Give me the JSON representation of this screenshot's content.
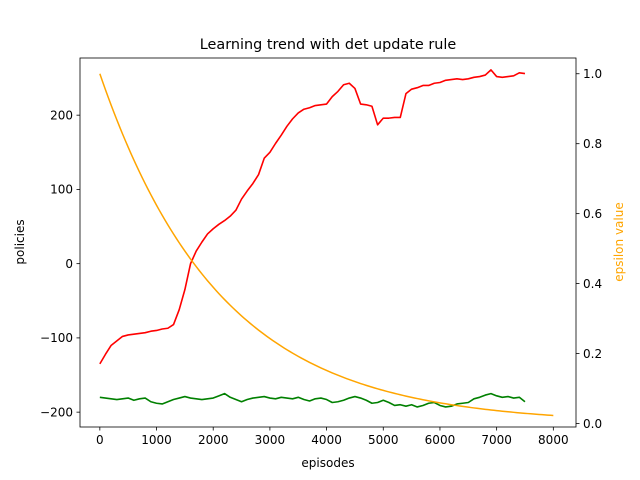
{
  "chart_data": {
    "type": "line",
    "title": "Learning trend with det update rule",
    "xlabel": "episodes",
    "ylabel": "policies",
    "y2label": "epsilon value",
    "xlim": [
      -350,
      8400
    ],
    "ylim": [
      -220,
      277
    ],
    "y2lim": [
      -0.01,
      1.045
    ],
    "x_ticks": [
      0,
      1000,
      2000,
      3000,
      4000,
      5000,
      6000,
      7000,
      8000
    ],
    "y_ticks": [
      -200,
      -100,
      0,
      100,
      200
    ],
    "y2_ticks": [
      0.0,
      0.2,
      0.4,
      0.6,
      0.8,
      1.0
    ],
    "grid": false,
    "colors": {
      "red_series": "#ff0000",
      "green_series": "#008000",
      "epsilon": "#ffa500",
      "y2label": "#ffa500"
    },
    "series": [
      {
        "axis": "left",
        "color": "#ff0000",
        "x": [
          0,
          100,
          200,
          300,
          400,
          500,
          600,
          700,
          800,
          900,
          1000,
          1100,
          1200,
          1300,
          1400,
          1500,
          1600,
          1700,
          1800,
          1900,
          2000,
          2100,
          2200,
          2300,
          2400,
          2500,
          2600,
          2700,
          2800,
          2900,
          3000,
          3100,
          3200,
          3300,
          3400,
          3500,
          3600,
          3700,
          3800,
          3900,
          4000,
          4100,
          4200,
          4300,
          4400,
          4500,
          4600,
          4700,
          4800,
          4900,
          5000,
          5100,
          5200,
          5300,
          5400,
          5500,
          5600,
          5700,
          5800,
          5900,
          6000,
          6100,
          6200,
          6300,
          6400,
          6500,
          6600,
          6700,
          6800,
          6900,
          7000,
          7100,
          7200,
          7300,
          7400,
          7500
        ],
        "y": [
          -135,
          -122,
          -110,
          -104,
          -98,
          -96,
          -95,
          -94,
          -93,
          -91,
          -90,
          -88,
          -87,
          -82,
          -62,
          -35,
          0,
          17,
          29,
          40,
          47,
          53,
          58,
          64,
          72,
          87,
          98,
          108,
          120,
          142,
          150,
          162,
          173,
          185,
          195,
          203,
          208,
          210,
          213,
          214,
          215,
          225,
          232,
          241,
          243,
          236,
          215,
          214,
          212,
          187,
          196,
          196,
          197,
          197,
          229,
          235,
          237,
          240,
          240,
          243,
          244,
          247,
          248,
          249,
          248,
          249,
          251,
          252,
          254,
          261,
          252,
          251,
          252,
          253,
          257,
          256
        ]
      },
      {
        "axis": "left",
        "color": "#008000",
        "x": [
          0,
          100,
          200,
          300,
          400,
          500,
          600,
          700,
          800,
          900,
          1000,
          1100,
          1200,
          1300,
          1400,
          1500,
          1600,
          1700,
          1800,
          1900,
          2000,
          2100,
          2200,
          2300,
          2400,
          2500,
          2600,
          2700,
          2800,
          2900,
          3000,
          3100,
          3200,
          3300,
          3400,
          3500,
          3600,
          3700,
          3800,
          3900,
          4000,
          4100,
          4200,
          4300,
          4400,
          4500,
          4600,
          4700,
          4800,
          4900,
          5000,
          5100,
          5200,
          5300,
          5400,
          5500,
          5600,
          5700,
          5800,
          5900,
          6000,
          6100,
          6200,
          6300,
          6400,
          6500,
          6600,
          6700,
          6800,
          6900,
          7000,
          7100,
          7200,
          7300,
          7400,
          7500
        ],
        "y": [
          -180,
          -181,
          -182,
          -183,
          -182,
          -181,
          -184,
          -182,
          -181,
          -186,
          -188,
          -189,
          -186,
          -183,
          -181,
          -179,
          -181,
          -182,
          -183,
          -182,
          -181,
          -178,
          -175,
          -180,
          -183,
          -186,
          -183,
          -181,
          -180,
          -179,
          -181,
          -182,
          -180,
          -181,
          -182,
          -180,
          -183,
          -185,
          -182,
          -181,
          -183,
          -187,
          -186,
          -184,
          -181,
          -179,
          -181,
          -184,
          -188,
          -187,
          -184,
          -187,
          -191,
          -190,
          -192,
          -190,
          -193,
          -191,
          -188,
          -187,
          -191,
          -193,
          -192,
          -189,
          -188,
          -187,
          -182,
          -180,
          -177,
          -175,
          -178,
          -180,
          -179,
          -181,
          -180,
          -186
        ]
      },
      {
        "axis": "right",
        "color": "#ffa500",
        "formula": "exponential decay from 1.0 at x=0",
        "x": [
          0,
          500,
          1000,
          1500,
          2000,
          2500,
          3000,
          3500,
          4000,
          4500,
          5000,
          5500,
          6000,
          6500,
          7000,
          7500,
          8000
        ],
        "y": [
          1.0,
          0.79,
          0.625,
          0.495,
          0.39,
          0.31,
          0.245,
          0.194,
          0.153,
          0.121,
          0.096,
          0.076,
          0.06,
          0.047,
          0.037,
          0.03,
          0.023
        ]
      }
    ]
  }
}
